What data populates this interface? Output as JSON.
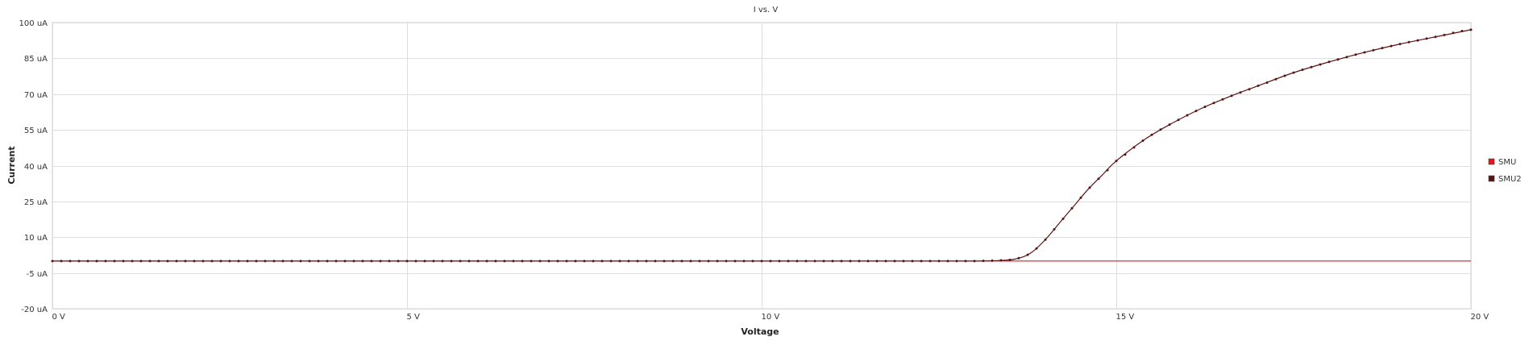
{
  "chart_data": {
    "type": "line",
    "title": "I vs. V",
    "xlabel": "Voltage",
    "ylabel": "Current",
    "xlim": [
      0,
      20
    ],
    "ylim": [
      -20,
      100
    ],
    "x_ticks": [
      {
        "value": 0,
        "label": "0 V"
      },
      {
        "value": 5,
        "label": "5 V"
      },
      {
        "value": 10,
        "label": "10 V"
      },
      {
        "value": 15,
        "label": "15 V"
      },
      {
        "value": 20,
        "label": "20 V"
      }
    ],
    "y_ticks": [
      {
        "value": 100,
        "label": "100 uA"
      },
      {
        "value": 85,
        "label": "85 uA"
      },
      {
        "value": 70,
        "label": "70 uA"
      },
      {
        "value": 55,
        "label": "55 uA"
      },
      {
        "value": 40,
        "label": "40 uA"
      },
      {
        "value": 25,
        "label": "25 uA"
      },
      {
        "value": 10,
        "label": "10 uA"
      },
      {
        "value": -5,
        "label": "-5 uA"
      },
      {
        "value": -20,
        "label": "-20 uA"
      }
    ],
    "grid": true,
    "legend_position": "right",
    "series": [
      {
        "name": "SMU",
        "color": "#e8141c",
        "marker": false,
        "x": [
          0,
          20
        ],
        "y": [
          0,
          0
        ]
      },
      {
        "name": "SMU2",
        "color": "#5a1414",
        "marker": true,
        "x": [
          0,
          1,
          2,
          3,
          4,
          5,
          6,
          7,
          8,
          9,
          10,
          11,
          12,
          13,
          13.4,
          13.6,
          13.8,
          14,
          14.2,
          14.4,
          14.6,
          14.8,
          15,
          15.4,
          15.8,
          16.2,
          16.6,
          17,
          17.5,
          18,
          18.5,
          19,
          19.5,
          20
        ],
        "y": [
          0,
          0,
          0,
          0,
          0,
          0,
          0,
          0,
          0,
          0,
          0,
          0,
          0,
          0,
          0.3,
          1,
          3.5,
          9,
          16,
          23,
          30,
          36,
          42,
          51,
          58,
          64,
          69,
          73.5,
          79,
          83.5,
          87.5,
          91,
          94,
          97
        ]
      }
    ]
  }
}
